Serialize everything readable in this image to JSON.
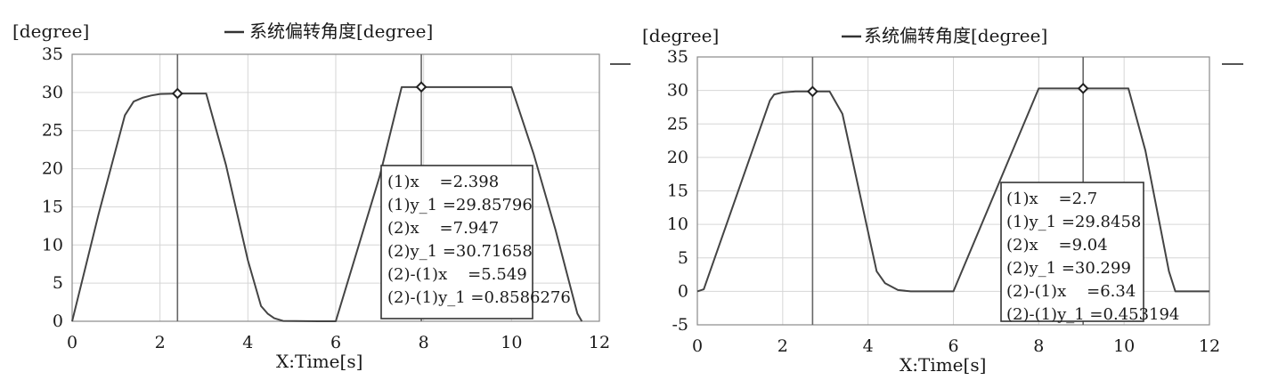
{
  "chart_data": [
    {
      "type": "line",
      "ylabel": "[degree]",
      "xlabel": "X:Time[s]",
      "xlim": [
        0,
        12
      ],
      "ylim": [
        0,
        35
      ],
      "xticks": [
        "0",
        "2",
        "4",
        "6",
        "8",
        "10",
        "12"
      ],
      "yticks": [
        "0",
        "5",
        "10",
        "15",
        "20",
        "25",
        "30",
        "35"
      ],
      "grid": true,
      "legend": {
        "position": "top-center",
        "label": "系统偏转角度[degree]"
      },
      "series": [
        {
          "name": "系统偏转角度[degree]",
          "x": [
            0,
            0.6,
            1.2,
            1.4,
            1.6,
            1.8,
            2.0,
            2.4,
            3.05,
            3.5,
            4.0,
            4.3,
            4.45,
            4.6,
            4.8,
            5.6,
            6.0,
            7.0,
            7.5,
            8.0,
            10.0,
            10.5,
            11.0,
            11.5,
            11.6
          ],
          "y": [
            0,
            14,
            27,
            28.8,
            29.3,
            29.6,
            29.8,
            29.85,
            29.85,
            20.5,
            8,
            2,
            1,
            0.4,
            0.05,
            0,
            0,
            19,
            30.7,
            30.7,
            30.7,
            22,
            12,
            1,
            0
          ]
        }
      ],
      "cursors": [
        {
          "label": "(1)",
          "x": 2.398,
          "y": 29.85796
        },
        {
          "label": "(2)",
          "x": 7.947,
          "y": 30.71658
        }
      ],
      "annotation": [
        "(1)x    =2.398",
        "(1)y_1 =29.85796",
        "(2)x    =7.947",
        "(2)y_1 =30.71658",
        "(2)-(1)x    =5.549",
        "(2)-(1)y_1 =0.8586276"
      ]
    },
    {
      "type": "line",
      "ylabel": "[degree]",
      "xlabel": "X:Time[s]",
      "xlim": [
        0,
        12
      ],
      "ylim": [
        -5,
        35
      ],
      "xticks": [
        "0",
        "2",
        "4",
        "6",
        "8",
        "10",
        "12"
      ],
      "yticks": [
        "-5",
        "0",
        "5",
        "10",
        "15",
        "20",
        "25",
        "30",
        "35"
      ],
      "grid": true,
      "legend": {
        "position": "top-center",
        "label": "系统偏转角度[degree]"
      },
      "series": [
        {
          "name": "系统偏转角度[degree]",
          "x": [
            0,
            0.15,
            1.7,
            1.8,
            2.0,
            2.3,
            3.1,
            3.4,
            4.2,
            4.4,
            4.7,
            5.0,
            6.0,
            8.0,
            9.04,
            10.1,
            10.5,
            11.05,
            11.2,
            12.0
          ],
          "y": [
            0,
            0.3,
            28.5,
            29.4,
            29.7,
            29.85,
            29.85,
            26.5,
            3,
            1.2,
            0.2,
            0,
            0,
            30.3,
            30.3,
            30.3,
            21,
            3,
            0,
            0
          ]
        }
      ],
      "cursors": [
        {
          "label": "(1)",
          "x": 2.7,
          "y": 29.8458
        },
        {
          "label": "(2)",
          "x": 9.04,
          "y": 30.299
        }
      ],
      "annotation": [
        "(1)x    =2.7",
        "(1)y_1 =29.8458",
        "(2)x    =9.04",
        "(2)y_1 =30.299",
        "(2)-(1)x    =6.34",
        "(2)-(1)y_1 =0.453194"
      ]
    }
  ]
}
